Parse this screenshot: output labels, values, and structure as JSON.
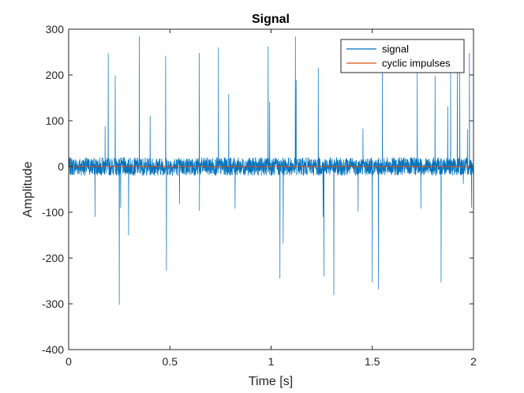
{
  "chart_data": {
    "type": "line",
    "title": "Signal",
    "xlabel": "Time [s]",
    "ylabel": "Amplitude",
    "xlim": [
      0,
      2
    ],
    "ylim": [
      -400,
      300
    ],
    "xticks": [
      0,
      0.5,
      1,
      1.5,
      2
    ],
    "xtick_labels": [
      "0",
      "0.5",
      "1",
      "1.5",
      "2"
    ],
    "yticks": [
      -400,
      -300,
      -200,
      -100,
      0,
      100,
      200,
      300
    ],
    "ytick_labels": [
      "-400",
      "-300",
      "-200",
      "-100",
      "0",
      "100",
      "200",
      "300"
    ],
    "grid": false,
    "legend_position": "top-right",
    "series": [
      {
        "name": "signal",
        "color": "#0072BD",
        "noise_amplitude": 20,
        "spikes": [
          {
            "x": 0.13,
            "y": -110
          },
          {
            "x": 0.18,
            "y": 88
          },
          {
            "x": 0.195,
            "y": 247
          },
          {
            "x": 0.23,
            "y": 199
          },
          {
            "x": 0.25,
            "y": -302
          },
          {
            "x": 0.257,
            "y": -90
          },
          {
            "x": 0.296,
            "y": -150
          },
          {
            "x": 0.349,
            "y": 284
          },
          {
            "x": 0.402,
            "y": 111
          },
          {
            "x": 0.479,
            "y": 242
          },
          {
            "x": 0.483,
            "y": -228
          },
          {
            "x": 0.548,
            "y": -82
          },
          {
            "x": 0.645,
            "y": 248
          },
          {
            "x": 0.646,
            "y": -97
          },
          {
            "x": 0.74,
            "y": 260
          },
          {
            "x": 0.791,
            "y": 158
          },
          {
            "x": 0.822,
            "y": -92
          },
          {
            "x": 0.985,
            "y": 262
          },
          {
            "x": 0.993,
            "y": 141
          },
          {
            "x": 1.044,
            "y": -245
          },
          {
            "x": 1.06,
            "y": -168
          },
          {
            "x": 1.12,
            "y": 284
          },
          {
            "x": 1.124,
            "y": 189
          },
          {
            "x": 1.233,
            "y": 216
          },
          {
            "x": 1.257,
            "y": -110
          },
          {
            "x": 1.261,
            "y": -240
          },
          {
            "x": 1.31,
            "y": -281
          },
          {
            "x": 1.43,
            "y": -98
          },
          {
            "x": 1.454,
            "y": 83
          },
          {
            "x": 1.5,
            "y": -253
          },
          {
            "x": 1.53,
            "y": -268
          },
          {
            "x": 1.55,
            "y": 204
          },
          {
            "x": 1.722,
            "y": 208
          },
          {
            "x": 1.74,
            "y": -92
          },
          {
            "x": 1.81,
            "y": 198
          },
          {
            "x": 1.84,
            "y": -253
          },
          {
            "x": 1.873,
            "y": 131
          },
          {
            "x": 1.887,
            "y": 206
          },
          {
            "x": 1.92,
            "y": 233
          },
          {
            "x": 1.932,
            "y": 213
          },
          {
            "x": 1.95,
            "y": -38
          },
          {
            "x": 1.97,
            "y": 82
          },
          {
            "x": 1.98,
            "y": 248
          },
          {
            "x": 1.99,
            "y": -90
          }
        ]
      },
      {
        "name": "cyclic impulses",
        "color": "#D95319",
        "noise_amplitude": 1
      }
    ]
  }
}
